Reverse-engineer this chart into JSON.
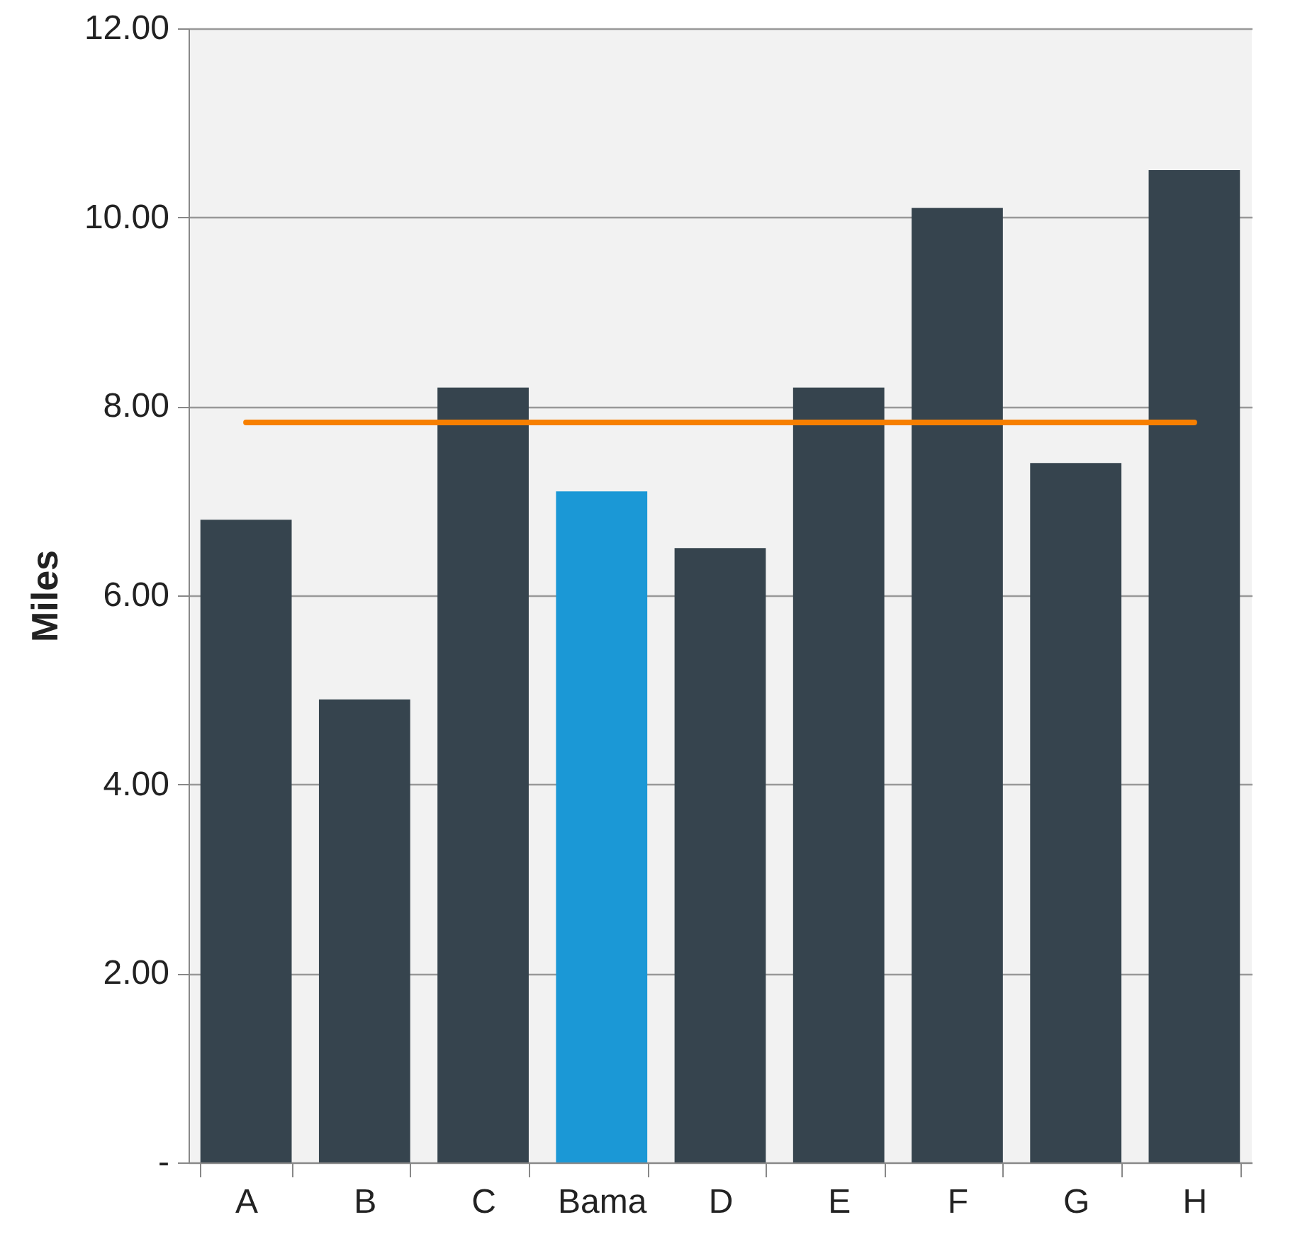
{
  "chart_data": {
    "type": "bar",
    "ylabel": "Miles",
    "categories": [
      "A",
      "B",
      "C",
      "Bama",
      "D",
      "E",
      "F",
      "G",
      "H"
    ],
    "values": [
      6.8,
      4.9,
      8.2,
      7.1,
      6.5,
      8.2,
      10.1,
      7.4,
      10.5
    ],
    "colors": [
      "#36444e",
      "#36444e",
      "#36444e",
      "#1b98d6",
      "#36444e",
      "#36444e",
      "#36444e",
      "#36444e",
      "#36444e"
    ],
    "ylim": [
      0,
      12
    ],
    "yticks": [
      {
        "value": 0,
        "label": "-"
      },
      {
        "value": 2,
        "label": "2.00"
      },
      {
        "value": 4,
        "label": "4.00"
      },
      {
        "value": 6,
        "label": "6.00"
      },
      {
        "value": 8,
        "label": "8.00"
      },
      {
        "value": 10,
        "label": "10.00"
      },
      {
        "value": 12,
        "label": "12.00"
      }
    ],
    "ref_lines": [
      {
        "axis": "y",
        "value": 7.83,
        "color": "#f77f00"
      }
    ],
    "grid": "y"
  }
}
